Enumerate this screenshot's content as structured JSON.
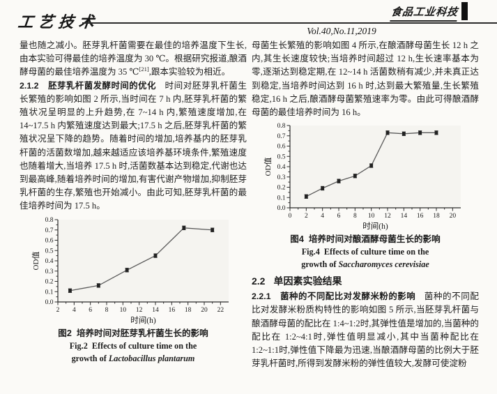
{
  "header": {
    "journal_logo_left": "工艺技术",
    "journal_logo_right": "食品工业科技",
    "volume_line": "Vol.40,No.11,2019"
  },
  "left_column": {
    "para1_text": "量也随之减小。胚芽乳杆菌需要在最佳的培养温度下生长,由本实验可得最佳的培养温度为 30 ℃。根据研究报道,酿酒酵母菌的最佳培养温度为 35 ℃",
    "para1_ref": "[21]",
    "para1_tail": ",跟本实验较为相近。",
    "sec212_num": "2.1.2",
    "sec212_title": "胚芽乳杆菌发酵时间的优化",
    "sec212_body": "时间对胚芽乳杆菌生长繁殖的影响如图 2 所示,当时间在 7 h 内,胚芽乳杆菌的繁殖状况呈明显的上升趋势,在 7~14 h 内,繁殖速度增加,在 14~17.5 h 内繁殖速度达到最大;17.5 h 之后,胚芽乳杆菌的繁殖状况呈下降的趋势。随着时间的增加,培养基内的胚芽乳杆菌的活菌数增加,越来越适应该培养基环境条件,繁殖速度也随着增大,当培养 17.5 h 时,活菌数基本达到稳定,代谢也达到最高峰,随着培养时间的增加,有害代谢产物增加,抑制胚芽乳杆菌的生存,繁殖也开始减小。由此可知,胚芽乳杆菌的最佳培养时间为 17.5 h。",
    "fig2_caption_zh": "图2  培养时间对胚芽乳杆菌生长的影响",
    "fig2_caption_en1": "Fig.2  Effects of culture time on the",
    "fig2_caption_en2_prefix": "growth of ",
    "fig2_caption_en2_species": "Lactobacillus plantarum"
  },
  "right_column": {
    "para1": "母菌生长繁殖的影响如图 4 所示,在酿酒酵母菌生长 12 h 之内,其生长速度较快;当培养时间超过 12 h,生长速率基本为零,逐渐达到稳定期,在 12~14 h 活菌数稍有减少,并未真正达到稳定,当培养时间达到 16 h 时,达到最大繁殖量,生长繁殖稳定,16 h 之后,酿酒酵母菌繁殖速率为零。由此可得酿酒酵母菌的最佳培养时间为 16 h。",
    "fig4_caption_zh": "图4  培养时间对酿酒酵母菌生长的影响",
    "fig4_caption_en1": "Fig.4  Effects of culture time on the",
    "fig4_caption_en2_prefix": "growth of ",
    "fig4_caption_en2_species": "Saccharomyces cerevisiae",
    "sec22_num": "2.2",
    "sec22_title": "单因素实验结果",
    "sec221_num": "2.2.1",
    "sec221_title": "菌种的不同配比对发酵米粉的影响",
    "sec221_body": "菌种的不同配比对发酵米粉质构特性的影响如图 5 所示,当胚芽乳杆菌与酿酒酵母菌的配比在 1:4~1:2时,其弹性值是增加的,当菌种的配比在 1:2~4:1时,弹性值明显减小,其中当菌种配比在 1:2~1:1时,弹性值下降最为迅速,当酿酒酵母菌的比例大于胚芽乳杆菌时,所得到发酵米粉的弹性值较大,发酵可使淀粉"
  },
  "chart_data": [
    {
      "id": "fig2",
      "type": "line",
      "title": "图2 培养时间对胚芽乳杆菌生长的影响",
      "xlabel": "时间(h)",
      "ylabel": "OD值",
      "x": [
        3.5,
        7,
        10.5,
        14,
        17.5,
        21
      ],
      "y": [
        0.11,
        0.16,
        0.31,
        0.45,
        0.72,
        0.7
      ],
      "xlim": [
        2,
        23
      ],
      "ylim": [
        0,
        0.8
      ],
      "xticks": [
        2,
        4,
        6,
        8,
        10,
        12,
        14,
        16,
        18,
        20,
        22
      ],
      "ytick_step": 0.1,
      "yerr": 0.018,
      "marker": "square",
      "grid": false,
      "line_color": "#5a5a5a",
      "marker_color": "#222222",
      "axis_color": "#2a2a2a",
      "plot_bg": "#f5f4f0"
    },
    {
      "id": "fig4",
      "type": "line",
      "title": "图4 培养时间对酿酒酵母菌生长的影响",
      "xlabel": "时间(h)",
      "ylabel": "OD值",
      "x": [
        2,
        4,
        6,
        8,
        10,
        12,
        14,
        16,
        18
      ],
      "y": [
        0.11,
        0.19,
        0.26,
        0.31,
        0.41,
        0.73,
        0.72,
        0.73,
        0.73
      ],
      "xlim": [
        0,
        21
      ],
      "ylim": [
        0,
        0.8
      ],
      "xticks": [
        0,
        2,
        4,
        6,
        8,
        10,
        12,
        14,
        16,
        18,
        20
      ],
      "ytick_step": 0.1,
      "yerr": 0.018,
      "marker": "square",
      "grid": false,
      "line_color": "#5a5a5a",
      "marker_color": "#222222",
      "axis_color": "#2a2a2a",
      "plot_bg": "#f5f4f0"
    }
  ]
}
